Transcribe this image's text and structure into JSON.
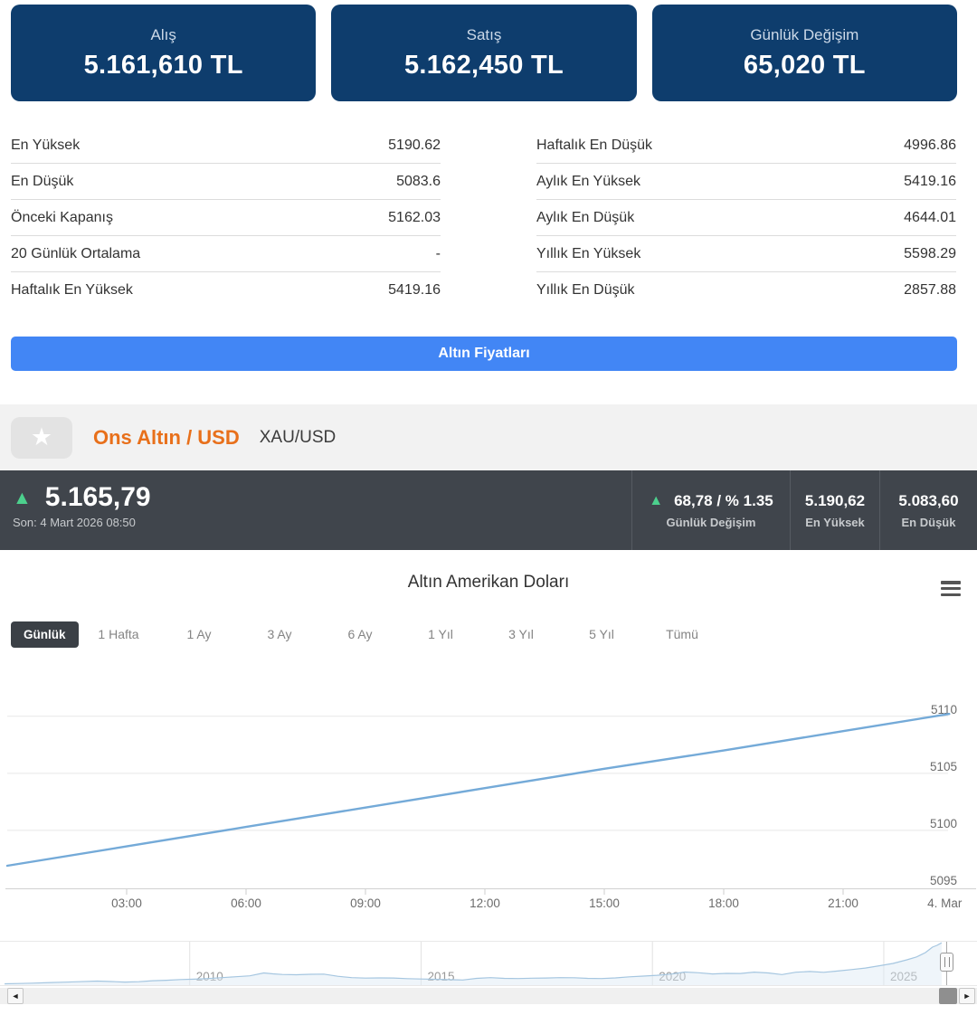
{
  "summary_cards": [
    {
      "label": "Alış",
      "value": "5.161,610 TL"
    },
    {
      "label": "Satış",
      "value": "5.162,450 TL"
    },
    {
      "label": "Günlük Değişim",
      "value": "65,020 TL"
    }
  ],
  "stats": {
    "left": [
      {
        "label": "En Yüksek",
        "value": "5190.62"
      },
      {
        "label": "En Düşük",
        "value": "5083.6"
      },
      {
        "label": "Önceki Kapanış",
        "value": "5162.03"
      },
      {
        "label": "20 Günlük Ortalama",
        "value": "-"
      },
      {
        "label": "Haftalık En Yüksek",
        "value": "5419.16"
      }
    ],
    "right": [
      {
        "label": "Haftalık En Düşük",
        "value": "4996.86"
      },
      {
        "label": "Aylık En Yüksek",
        "value": "5419.16"
      },
      {
        "label": "Aylık En Düşük",
        "value": "4644.01"
      },
      {
        "label": "Yıllık En Yüksek",
        "value": "5598.29"
      },
      {
        "label": "Yıllık En Düşük",
        "value": "2857.88"
      }
    ]
  },
  "prices_button": {
    "label": "Altın Fiyatları",
    "color": "#4286f5"
  },
  "instrument": {
    "name": "Ons Altın / USD",
    "code": "XAU/USD",
    "name_color": "#e8701b"
  },
  "ticker": {
    "price": "5.165,79",
    "last_update": "Son: 4 Mart 2026 08:50",
    "change": "68,78 / % 1.35",
    "change_label": "Günlük Değişim",
    "high": "5.190,62",
    "high_label": "En Yüksek",
    "low": "5.083,60",
    "low_label": "En Düşük",
    "up_color": "#4cd08d",
    "bg_color": "#40454c"
  },
  "chart": {
    "title": "Altın Amerikan Doları",
    "ranges": [
      {
        "label": "Günlük",
        "active": true
      },
      {
        "label": "1 Hafta"
      },
      {
        "label": "1 Ay"
      },
      {
        "label": "3 Ay"
      },
      {
        "label": "6 Ay"
      },
      {
        "label": "1 Yıl"
      },
      {
        "label": "3 Yıl"
      },
      {
        "label": "5 Yıl"
      },
      {
        "label": "Tümü"
      }
    ]
  },
  "icons": {
    "star": "★",
    "up_arrow": "▲",
    "scroll_left": "◄",
    "scroll_right": "►"
  },
  "chart_data": [
    {
      "id": "intraday",
      "type": "line",
      "title": "Altın Amerikan Doları",
      "line_color": "#74aad8",
      "grid": "horizontal",
      "legend": "none",
      "ylim": [
        5095,
        5114.5
      ],
      "y_ticks": [
        5095,
        5100,
        5105,
        5110
      ],
      "x_ticks": [
        {
          "label": "03:00",
          "t": 180
        },
        {
          "label": "06:00",
          "t": 360
        },
        {
          "label": "09:00",
          "t": 540
        },
        {
          "label": "12:00",
          "t": 720
        },
        {
          "label": "15:00",
          "t": 900
        },
        {
          "label": "18:00",
          "t": 1080
        },
        {
          "label": "21:00",
          "t": 1260
        },
        {
          "label": "4. Mar",
          "t": 1413,
          "tick": false
        }
      ],
      "series": [
        {
          "name": "XAU/USD",
          "points": [
            [
              0,
              5096.9
            ],
            [
              180,
              5098.6
            ],
            [
              360,
              5100.3
            ],
            [
              540,
              5102.0
            ],
            [
              720,
              5103.7
            ],
            [
              900,
              5105.4
            ],
            [
              1080,
              5107.0
            ],
            [
              1260,
              5108.7
            ],
            [
              1420,
              5110.2
            ]
          ]
        }
      ]
    },
    {
      "id": "navigator",
      "type": "area",
      "line_color": "#a5c6e0",
      "fill_color": "#dce9f5",
      "xlim": [
        2005.9,
        2026.35
      ],
      "ylim": [
        500,
        5300
      ],
      "x_ticks": [
        2010,
        2015,
        2020,
        2025
      ],
      "points": [
        [
          2006,
          650
        ],
        [
          2006.3,
          680
        ],
        [
          2006.6,
          720
        ],
        [
          2007,
          790
        ],
        [
          2007.3,
          830
        ],
        [
          2007.6,
          880
        ],
        [
          2008,
          950
        ],
        [
          2008.3,
          900
        ],
        [
          2008.6,
          840
        ],
        [
          2008.9,
          880
        ],
        [
          2009.2,
          990
        ],
        [
          2009.5,
          1040
        ],
        [
          2009.8,
          1120
        ],
        [
          2010.1,
          1160
        ],
        [
          2010.4,
          1230
        ],
        [
          2010.7,
          1330
        ],
        [
          2011,
          1430
        ],
        [
          2011.3,
          1530
        ],
        [
          2011.6,
          1850
        ],
        [
          2011.8,
          1750
        ],
        [
          2012,
          1680
        ],
        [
          2012.3,
          1650
        ],
        [
          2012.6,
          1700
        ],
        [
          2012.9,
          1720
        ],
        [
          2013.2,
          1480
        ],
        [
          2013.5,
          1330
        ],
        [
          2013.8,
          1280
        ],
        [
          2014.1,
          1300
        ],
        [
          2014.4,
          1290
        ],
        [
          2014.7,
          1220
        ],
        [
          2015,
          1180
        ],
        [
          2015.3,
          1150
        ],
        [
          2015.6,
          1110
        ],
        [
          2015.9,
          1070
        ],
        [
          2016.2,
          1250
        ],
        [
          2016.5,
          1330
        ],
        [
          2016.8,
          1250
        ],
        [
          2017.1,
          1230
        ],
        [
          2017.4,
          1270
        ],
        [
          2017.7,
          1290
        ],
        [
          2018,
          1330
        ],
        [
          2018.3,
          1320
        ],
        [
          2018.6,
          1250
        ],
        [
          2018.9,
          1230
        ],
        [
          2019.2,
          1300
        ],
        [
          2019.5,
          1420
        ],
        [
          2019.8,
          1500
        ],
        [
          2020.1,
          1590
        ],
        [
          2020.4,
          1720
        ],
        [
          2020.7,
          1950
        ],
        [
          2021,
          1870
        ],
        [
          2021.3,
          1740
        ],
        [
          2021.6,
          1800
        ],
        [
          2021.9,
          1790
        ],
        [
          2022.2,
          1940
        ],
        [
          2022.5,
          1850
        ],
        [
          2022.8,
          1670
        ],
        [
          2023.1,
          1930
        ],
        [
          2023.4,
          2010
        ],
        [
          2023.7,
          1920
        ],
        [
          2024,
          2060
        ],
        [
          2024.3,
          2220
        ],
        [
          2024.6,
          2390
        ],
        [
          2024.9,
          2640
        ],
        [
          2025.2,
          2900
        ],
        [
          2025.5,
          3300
        ],
        [
          2025.7,
          3600
        ],
        [
          2025.9,
          4100
        ],
        [
          2026.05,
          4700
        ],
        [
          2026.15,
          4900
        ],
        [
          2026.25,
          5180
        ]
      ]
    }
  ]
}
